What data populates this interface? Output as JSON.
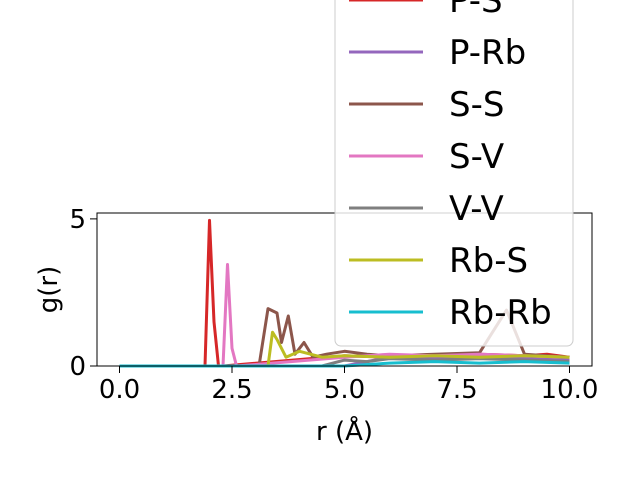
{
  "chart_data": {
    "type": "line",
    "xlabel": "r (Å)",
    "ylabel": "g(r)",
    "xlim": [
      -0.5,
      10.5
    ],
    "ylim": [
      0,
      5.2
    ],
    "xticks": [
      "0.0",
      "2.5",
      "5.0",
      "7.5",
      "10.0"
    ],
    "xtick_values": [
      0,
      2.5,
      5,
      7.5,
      10
    ],
    "yticks": [
      "0",
      "5"
    ],
    "ytick_values": [
      0,
      5
    ],
    "legend_position": "upper right, partly cut off above the plot",
    "series": [
      {
        "name": "P-S",
        "color": "#d62728",
        "x": [
          0,
          1.9,
          2.0,
          2.1,
          2.2,
          2.3,
          5.0,
          6.0,
          7.0,
          8.0,
          9.0,
          9.5,
          10.0
        ],
        "y": [
          0,
          0,
          4.95,
          1.5,
          0,
          0,
          0.35,
          0.3,
          0.35,
          0.4,
          0.35,
          0.4,
          0.3
        ]
      },
      {
        "name": "P-Rb",
        "color": "#9467bd",
        "x": [
          0,
          5.0,
          6.0,
          7.0,
          8.0,
          9.0,
          10.0
        ],
        "y": [
          0,
          0,
          0.3,
          0.25,
          0.3,
          0.25,
          0.2
        ]
      },
      {
        "name": "S-S",
        "color": "#8c564b",
        "x": [
          0,
          3.1,
          3.3,
          3.5,
          3.6,
          3.75,
          3.9,
          4.1,
          4.3,
          4.6,
          5.0,
          5.5,
          6.0,
          7.0,
          8.0,
          8.6,
          9.0,
          10.0
        ],
        "y": [
          0,
          0,
          1.95,
          1.8,
          0.8,
          1.7,
          0.4,
          0.8,
          0.3,
          0.4,
          0.5,
          0.4,
          0.35,
          0.4,
          0.45,
          1.9,
          0.4,
          0.3
        ]
      },
      {
        "name": "S-V",
        "color": "#e377c2",
        "x": [
          0,
          2.3,
          2.4,
          2.5,
          2.6,
          5.0,
          6.0,
          7.0,
          8.0,
          9.0,
          10.0
        ],
        "y": [
          0,
          0,
          3.45,
          0.6,
          0,
          0.3,
          0.4,
          0.35,
          0.4,
          0.35,
          0.3
        ]
      },
      {
        "name": "V-V",
        "color": "#7f7f7f",
        "x": [
          0,
          4.5,
          5.0,
          5.5,
          6.0,
          7.0,
          8.0,
          9.0,
          10.0
        ],
        "y": [
          0,
          0,
          0.2,
          0.15,
          0.25,
          0.2,
          0.25,
          0.2,
          0.15
        ]
      },
      {
        "name": "Rb-S",
        "color": "#bcbd22",
        "x": [
          0,
          3.3,
          3.4,
          3.5,
          3.7,
          4.0,
          4.5,
          5.0,
          6.0,
          7.0,
          8.0,
          9.0,
          10.0
        ],
        "y": [
          0,
          0,
          1.15,
          0.9,
          0.3,
          0.5,
          0.3,
          0.35,
          0.3,
          0.35,
          0.3,
          0.35,
          0.3
        ]
      },
      {
        "name": "Rb-Rb",
        "color": "#17becf",
        "x": [
          0,
          5.0,
          6.0,
          7.0,
          8.0,
          9.0,
          10.0
        ],
        "y": [
          0,
          0,
          0.1,
          0.15,
          0.1,
          0.15,
          0.1
        ]
      }
    ]
  }
}
